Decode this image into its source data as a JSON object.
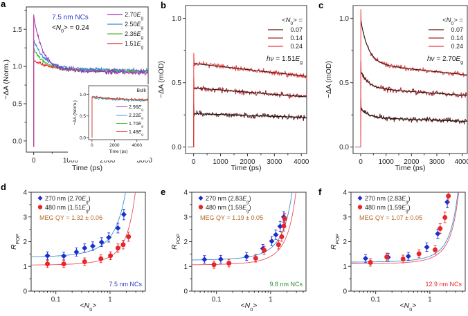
{
  "chart_data": [
    {
      "panel": "a",
      "type": "line",
      "title": "",
      "annotation_title": "7.5 nm NCs",
      "annotation_n0": "<N0> = 0.24",
      "xlabel": "Time (ps)",
      "ylabel": "−ΔA (Norm.)",
      "xlim": [
        -200,
        3100
      ],
      "ylim": [
        -0.15,
        1.8
      ],
      "xticks": [
        0,
        1000,
        2000,
        3000
      ],
      "yticks": [
        0.0,
        0.5,
        1.0,
        1.5
      ],
      "legend_position": "top-right",
      "series": [
        {
          "name": "2.70Eg",
          "color": "#9b2fb5",
          "peak": 1.68,
          "plateau": 0.95,
          "tau": 250
        },
        {
          "name": "2.50Eg",
          "color": "#2f8fd8",
          "peak": 1.36,
          "plateau": 0.98,
          "tau": 280
        },
        {
          "name": "2.36Eg",
          "color": "#55b83a",
          "peak": 1.24,
          "plateau": 0.96,
          "tau": 300
        },
        {
          "name": "1.51Eg",
          "color": "#e8262a",
          "peak": 1.08,
          "plateau": 0.97,
          "tau": 400
        }
      ],
      "inset": {
        "title": "Bulk",
        "xlabel": "Time (ps)",
        "ylabel": "−ΔA (Norm.)",
        "xlim": [
          -300,
          5000
        ],
        "ylim": [
          -0.05,
          1.2
        ],
        "xticks": [
          0,
          2000,
          4000
        ],
        "yticks": [
          0.0,
          0.5,
          1.0
        ],
        "series": [
          {
            "name": "2.96Eg",
            "color": "#9b2fb5",
            "level": 0.9
          },
          {
            "name": "2.22Eg",
            "color": "#2f8fd8",
            "level": 0.89
          },
          {
            "name": "1.70Eg",
            "color": "#55b83a",
            "level": 0.9
          },
          {
            "name": "1.48Eg",
            "color": "#e8262a",
            "level": 0.91
          }
        ]
      }
    },
    {
      "panel": "b",
      "type": "line",
      "xlabel": "Time (ps)",
      "ylabel": "−ΔA (mOD)",
      "xlim": [
        -300,
        4200
      ],
      "ylim": [
        -0.05,
        1.1
      ],
      "xticks": [
        0,
        1000,
        2000,
        3000,
        4000
      ],
      "yticks": [
        0.0,
        0.5,
        1.0
      ],
      "legend_title": "<N0> =",
      "annotation": "hν = 1.51Eg",
      "legend_position": "top-right",
      "series": [
        {
          "name": "0.07",
          "color": "#5a1a1a",
          "start": 0.26,
          "end": 0.23,
          "fast": 0.0,
          "tau": 400
        },
        {
          "name": "0.14",
          "color": "#a8262a",
          "start": 0.46,
          "end": 0.39,
          "fast": 0.0,
          "tau": 400
        },
        {
          "name": "0.24",
          "color": "#ee3a3a",
          "start": 0.65,
          "end": 0.55,
          "fast": 0.0,
          "tau": 400
        }
      ]
    },
    {
      "panel": "c",
      "type": "line",
      "xlabel": "Time (ps)",
      "ylabel": "−ΔA (mOD)",
      "xlim": [
        -300,
        4200
      ],
      "ylim": [
        -0.05,
        1.1
      ],
      "xticks": [
        0,
        1000,
        2000,
        3000,
        4000
      ],
      "yticks": [
        0.0,
        0.5,
        1.0
      ],
      "legend_title": "<N0> =",
      "annotation": "hν = 2.70Eg",
      "legend_position": "top-right",
      "series": [
        {
          "name": "0.07",
          "color": "#5a1a1a",
          "start": 0.23,
          "end": 0.2,
          "fast": 0.07,
          "tau": 300
        },
        {
          "name": "0.14",
          "color": "#a8262a",
          "start": 0.46,
          "end": 0.4,
          "fast": 0.13,
          "tau": 300
        },
        {
          "name": "0.24",
          "color": "#ee3a3a",
          "start": 0.65,
          "end": 0.56,
          "fast": 0.34,
          "tau": 300
        }
      ]
    },
    {
      "panel": "d",
      "type": "scatter",
      "xscale": "log",
      "xlabel": "<N0>",
      "ylabel": "RPOP",
      "xlim": [
        0.035,
        4.5
      ],
      "ylim": [
        0,
        4
      ],
      "xticks": [
        0.1,
        1
      ],
      "yticks": [
        0,
        1,
        2,
        3,
        4
      ],
      "legend_position": "top-left",
      "annotation": "MEG QY = 1.32 ± 0.06",
      "sample_label": "7.5 nm NCs",
      "sample_color": "#2a3bc8",
      "series": [
        {
          "name": "270 nm (2.70Eg)",
          "color": "#1a2fd0",
          "fit_color": "#3a8fd0",
          "marker": "diamond",
          "x": [
            0.07,
            0.14,
            0.24,
            0.34,
            0.48,
            0.7,
            0.95,
            1.4,
            1.8
          ],
          "y": [
            1.43,
            1.42,
            1.58,
            1.74,
            1.82,
            1.98,
            2.17,
            2.55,
            3.1
          ],
          "fit_base": 1.37,
          "fit_k": 0.47
        },
        {
          "name": "480 nm (1.51Eg)",
          "color": "#e8262a",
          "fit_color": "#e85060",
          "marker": "circle",
          "x": [
            0.07,
            0.14,
            0.34,
            0.68,
            1.02,
            1.4,
            1.75,
            2.2
          ],
          "y": [
            1.1,
            1.1,
            1.19,
            1.31,
            1.43,
            1.74,
            1.88,
            2.2
          ],
          "fit_base": 1.05,
          "fit_k": 0.2
        }
      ]
    },
    {
      "panel": "e",
      "type": "scatter",
      "xscale": "log",
      "xlabel": "<N0>",
      "ylabel": "RPOP",
      "xlim": [
        0.035,
        4.5
      ],
      "ylim": [
        0,
        4
      ],
      "xticks": [
        0.1,
        1
      ],
      "yticks": [
        0,
        1,
        2,
        3,
        4
      ],
      "legend_position": "top-left",
      "annotation": "MEG QY = 1.19 ± 0.05",
      "sample_label": "9.8 nm NCs",
      "sample_color": "#2f8a2f",
      "series": [
        {
          "name": "270 nm (2.83Eg)",
          "color": "#1a2fd0",
          "fit_color": "#3a8fd0",
          "marker": "diamond",
          "x": [
            0.06,
            0.12,
            0.36,
            0.72,
            1.05,
            1.25,
            1.5,
            1.75
          ],
          "y": [
            1.28,
            1.29,
            1.4,
            1.72,
            2.02,
            2.28,
            2.62,
            3.0
          ],
          "fit_base": 1.25,
          "fit_k": 0.28
        },
        {
          "name": "480 nm (1.59Eg)",
          "color": "#e8262a",
          "fit_color": "#e85060",
          "marker": "circle",
          "x": [
            0.09,
            0.17,
            0.53,
            0.76,
            1.4,
            1.6,
            1.75,
            1.82
          ],
          "y": [
            1.07,
            1.13,
            1.33,
            1.65,
            1.88,
            2.2,
            2.63,
            2.93
          ],
          "fit_base": 1.06,
          "fit_k": 0.2
        }
      ]
    },
    {
      "panel": "f",
      "type": "scatter",
      "xscale": "log",
      "xlabel": "<N0>",
      "ylabel": "RPOP",
      "xlim": [
        0.035,
        4.5
      ],
      "ylim": [
        0,
        4
      ],
      "xticks": [
        0.1,
        1
      ],
      "yticks": [
        0,
        1,
        2,
        3,
        4
      ],
      "legend_position": "top-left",
      "annotation": "MEG QY = 1.07 ± 0.05",
      "sample_label": "12.9 nm NCs",
      "sample_color": "#e8262a",
      "series": [
        {
          "name": "270 nm (2.83Eg)",
          "color": "#1a2fd0",
          "fit_color": "#3a8fd0",
          "marker": "diamond",
          "x": [
            0.065,
            0.17,
            0.4,
            0.88,
            1.4,
            2.1
          ],
          "y": [
            1.32,
            1.37,
            1.41,
            1.78,
            2.32,
            3.6
          ],
          "fit_base": 1.17,
          "fit_k": 0.14
        },
        {
          "name": "480 nm (1.59Eg)",
          "color": "#e8262a",
          "fit_color": "#e85060",
          "marker": "circle",
          "x": [
            0.08,
            0.16,
            0.32,
            0.63,
            1.25,
            1.55,
            1.9,
            2.2
          ],
          "y": [
            1.16,
            1.38,
            1.3,
            1.51,
            1.67,
            2.53,
            2.98,
            3.85
          ],
          "fit_base": 1.1,
          "fit_k": 0.13
        }
      ]
    }
  ],
  "panel_labels": [
    "a",
    "b",
    "c",
    "d",
    "e",
    "f"
  ]
}
